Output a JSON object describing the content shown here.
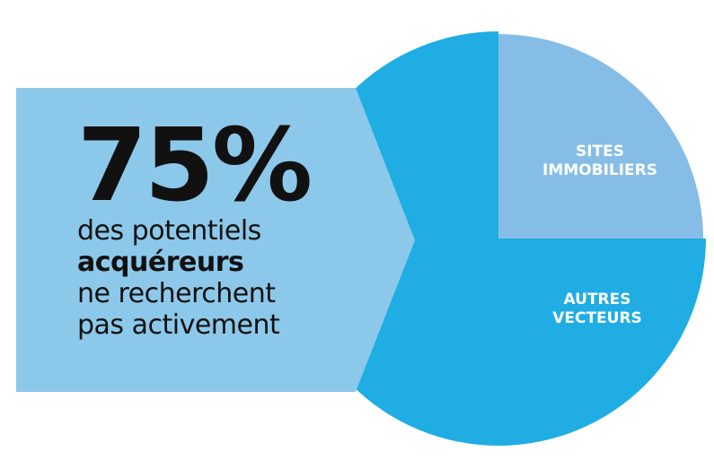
{
  "chart_data": {
    "type": "pie",
    "categories": [
      "SITES IMMOBILIERS",
      "AUTRES VECTEURS"
    ],
    "values": [
      25,
      75
    ],
    "value_labels": [
      null,
      "75%"
    ],
    "colors": [
      "#86bde6",
      "#1fade3"
    ],
    "annotation_lines": [
      {
        "text": "des potentiels",
        "bold": false
      },
      {
        "text": "acquéreurs",
        "bold": true
      },
      {
        "text": "ne recherchent",
        "bold": false
      },
      {
        "text": "pas activement",
        "bold": false
      }
    ]
  }
}
